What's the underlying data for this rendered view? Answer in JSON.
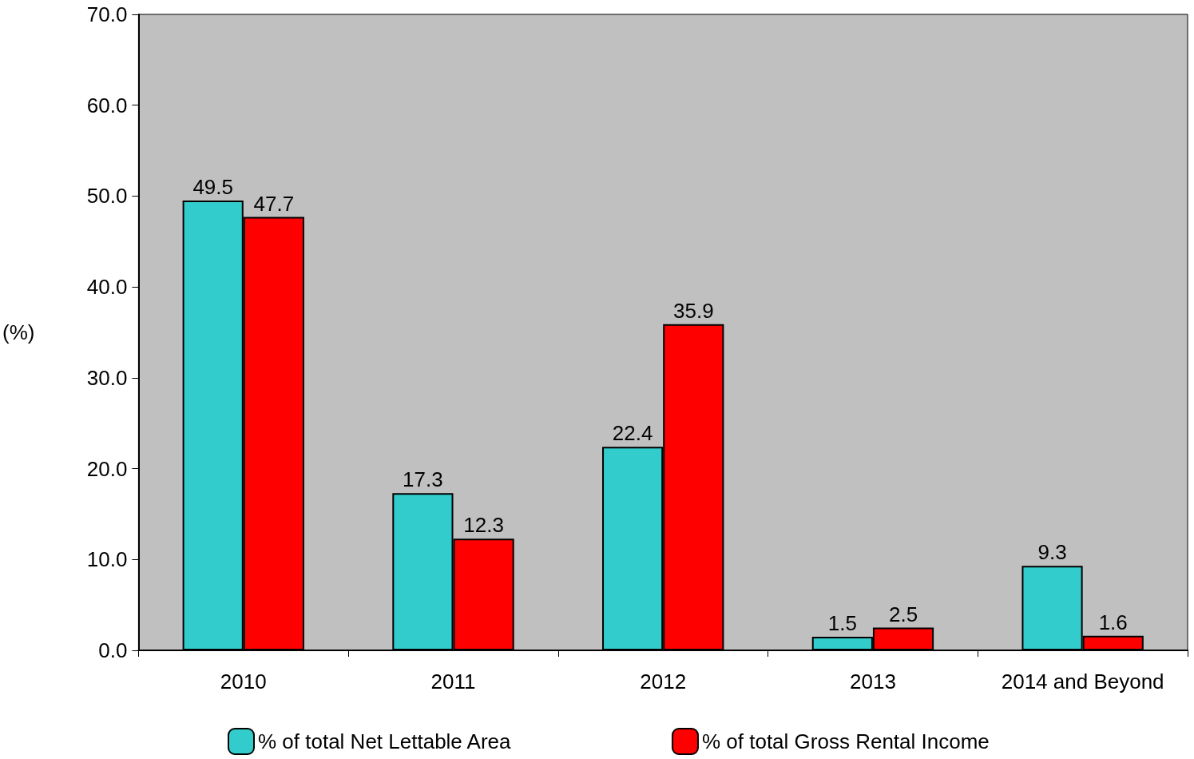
{
  "chart_data": {
    "type": "bar",
    "ylabel": "(%)",
    "categories": [
      "2010",
      "2011",
      "2012",
      "2013",
      "2014 and Beyond"
    ],
    "series": [
      {
        "name": "% of total Net Lettable Area",
        "color": "#33cccc",
        "values": [
          49.5,
          17.3,
          22.4,
          1.5,
          9.3
        ]
      },
      {
        "name": "% of total Gross Rental Income",
        "color": "#ff0000",
        "values": [
          47.7,
          12.3,
          35.9,
          2.5,
          1.6
        ]
      }
    ],
    "ylim": [
      0,
      70
    ],
    "yticks": [
      {
        "value": 0,
        "label": "0.0"
      },
      {
        "value": 10,
        "label": "10.0"
      },
      {
        "value": 20,
        "label": "20.0"
      },
      {
        "value": 30,
        "label": "30.0"
      },
      {
        "value": 40,
        "label": "40.0"
      },
      {
        "value": 50,
        "label": "50.0"
      },
      {
        "value": 60,
        "label": "60.0"
      },
      {
        "value": 70,
        "label": "70.0"
      }
    ],
    "data_labels": true,
    "grid": false,
    "legend": "bottom"
  }
}
